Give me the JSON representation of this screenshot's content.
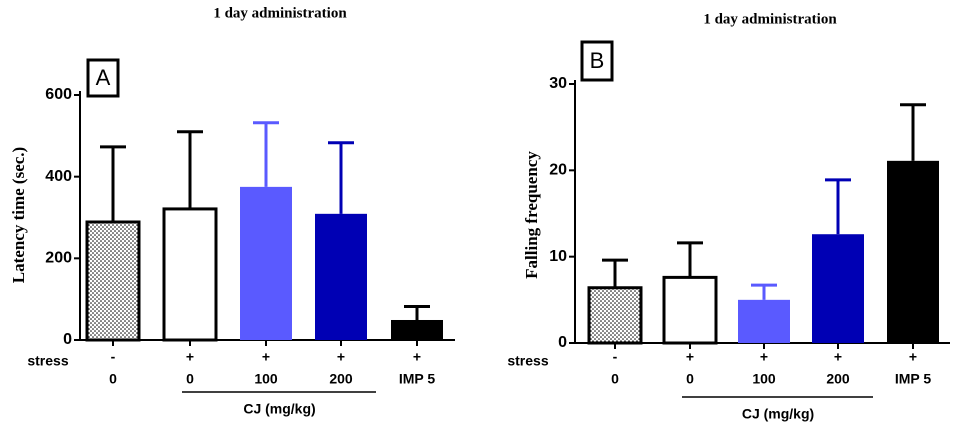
{
  "chart_data": [
    {
      "type": "bar",
      "title": "1 day administration",
      "panel_label": "A",
      "ylabel": "Latency time (sec.)",
      "stress_label": "stress",
      "stress": [
        "-",
        "+",
        "+",
        "+",
        "+"
      ],
      "categories": [
        "0",
        "0",
        "100",
        "200",
        "IMP 5"
      ],
      "group_label": "CJ  (mg/kg)",
      "values": [
        289,
        321,
        375,
        309,
        49
      ],
      "errors": [
        184,
        189,
        157,
        174,
        33
      ],
      "colors": [
        "#ffffff",
        "#ffffff",
        "#5a5aff",
        "#0000b4",
        "#000000"
      ],
      "patterns": [
        "dots",
        "none",
        "none",
        "none",
        "none"
      ],
      "ylim": [
        0,
        600
      ],
      "yticks": [
        0,
        200,
        400,
        600
      ]
    },
    {
      "type": "bar",
      "title": "1 day administration",
      "panel_label": "B",
      "ylabel": "Falling frequency",
      "stress_label": "stress",
      "stress": [
        "-",
        "+",
        "+",
        "+",
        "+"
      ],
      "categories": [
        "0",
        "0",
        "100",
        "200",
        "IMP 5"
      ],
      "group_label": "CJ  (mg/kg)",
      "values": [
        6.4,
        7.6,
        5.0,
        12.6,
        21.1
      ],
      "errors": [
        3.2,
        4.0,
        1.7,
        6.3,
        6.5
      ],
      "colors": [
        "#ffffff",
        "#ffffff",
        "#5a5aff",
        "#0000b4",
        "#000000"
      ],
      "patterns": [
        "dots",
        "none",
        "none",
        "none",
        "none"
      ],
      "ylim": [
        0,
        30
      ],
      "yticks": [
        0,
        10,
        20,
        30
      ]
    }
  ]
}
